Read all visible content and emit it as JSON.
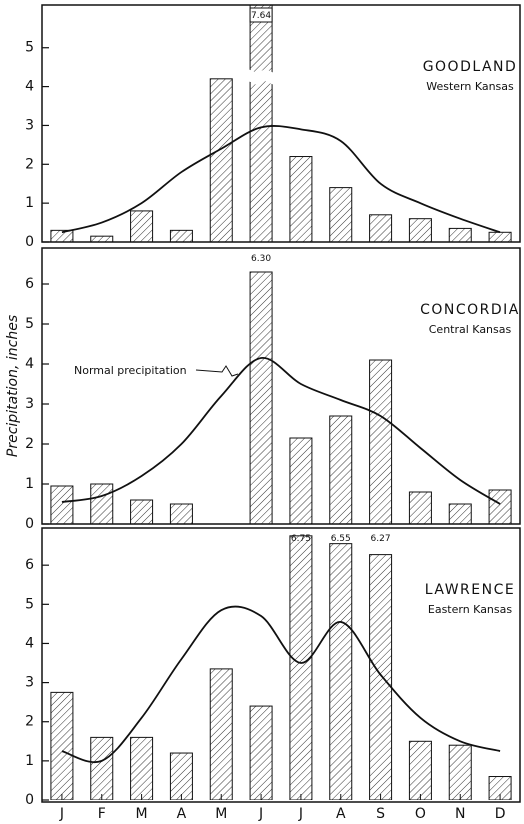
{
  "chart_data": [
    {
      "type": "bar",
      "title": "GOODLAND",
      "subtitle": "Western Kansas",
      "values": [
        0.3,
        0.15,
        0.8,
        0.3,
        4.2,
        7.64,
        2.2,
        1.4,
        0.7,
        0.6,
        0.35,
        0.25
      ],
      "value_labels": [
        null,
        null,
        null,
        null,
        null,
        "7.64",
        null,
        null,
        null,
        null,
        null,
        null
      ],
      "normal": [
        0.25,
        0.5,
        1.0,
        1.8,
        2.4,
        2.95,
        2.9,
        2.6,
        1.5,
        1.0,
        0.6,
        0.25
      ],
      "ylim": [
        0,
        6.1
      ],
      "yticks": [
        0,
        1,
        2,
        3,
        4,
        5
      ]
    },
    {
      "type": "bar",
      "title": "CONCORDIA",
      "subtitle": "Central Kansas",
      "ylabel": "Precipitation, inches",
      "annotation": "Normal precipitation",
      "values": [
        0.95,
        1.0,
        0.6,
        0.5,
        null,
        6.3,
        2.15,
        2.7,
        4.1,
        0.8,
        0.5,
        0.85
      ],
      "value_labels": [
        null,
        null,
        null,
        null,
        null,
        "6.30",
        null,
        null,
        null,
        null,
        null,
        null
      ],
      "normal": [
        0.55,
        0.7,
        1.2,
        2.0,
        3.2,
        4.15,
        3.5,
        3.1,
        2.7,
        1.9,
        1.1,
        0.5
      ],
      "ylim": [
        0,
        6.9
      ],
      "yticks": [
        0,
        1,
        2,
        3,
        4,
        5,
        6
      ]
    },
    {
      "type": "bar",
      "title": "LAWRENCE",
      "subtitle": "Eastern Kansas",
      "categories": [
        "J",
        "F",
        "M",
        "A",
        "M",
        "J",
        "J",
        "A",
        "S",
        "O",
        "N",
        "D"
      ],
      "values": [
        2.75,
        1.6,
        1.6,
        1.2,
        3.35,
        2.4,
        6.75,
        6.55,
        6.27,
        1.5,
        1.4,
        0.6
      ],
      "value_labels": [
        null,
        null,
        null,
        null,
        null,
        null,
        "6.75",
        "6.55",
        "6.27",
        null,
        null,
        null
      ],
      "normal": [
        1.25,
        1.0,
        2.1,
        3.6,
        4.85,
        4.7,
        3.5,
        4.55,
        3.2,
        2.1,
        1.5,
        1.25
      ],
      "ylim": [
        0,
        6.95
      ],
      "yticks": [
        0,
        1,
        2,
        3,
        4,
        5,
        6
      ]
    }
  ]
}
